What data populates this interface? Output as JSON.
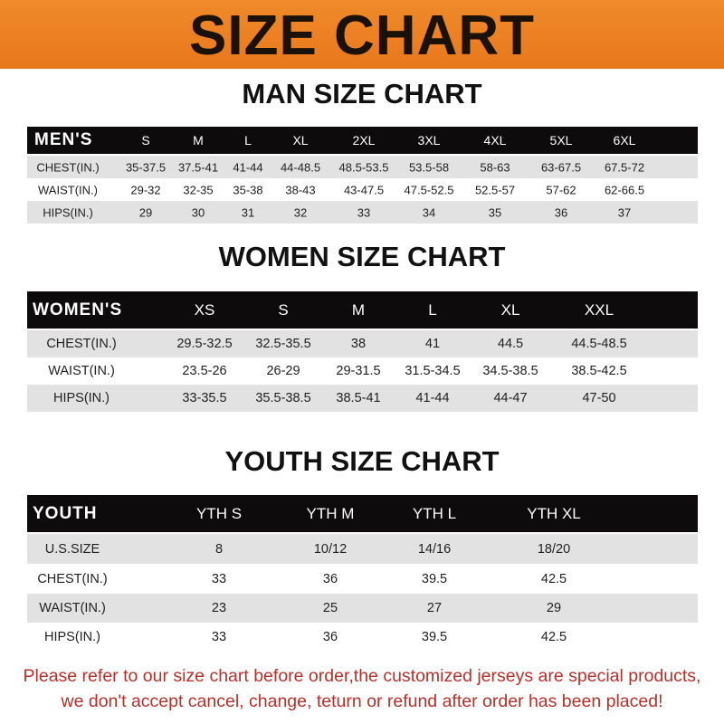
{
  "banner_title": "SIZE CHART",
  "men": {
    "title": "MAN SIZE CHART",
    "header": [
      "MEN'S",
      "S",
      "M",
      "L",
      "XL",
      "2XL",
      "3XL",
      "4XL",
      "5XL",
      "6XL"
    ],
    "rows": [
      [
        "CHEST(IN.)",
        "35-37.5",
        "37.5-41",
        "41-44",
        "44-48.5",
        "48.5-53.5",
        "53.5-58",
        "58-63",
        "63-67.5",
        "67.5-72"
      ],
      [
        "WAIST(IN.)",
        "29-32",
        "32-35",
        "35-38",
        "38-43",
        "43-47.5",
        "47.5-52.5",
        "52.5-57",
        "57-62",
        "62-66.5"
      ],
      [
        "HIPS(IN.)",
        "29",
        "30",
        "31",
        "32",
        "33",
        "34",
        "35",
        "36",
        "37"
      ]
    ]
  },
  "women": {
    "title": "WOMEN SIZE CHART",
    "header": [
      "WOMEN'S",
      "XS",
      "S",
      "M",
      "L",
      "XL",
      "XXL"
    ],
    "rows": [
      [
        "CHEST(IN.)",
        "29.5-32.5",
        "32.5-35.5",
        "38",
        "41",
        "44.5",
        "44.5-48.5"
      ],
      [
        "WAIST(IN.)",
        "23.5-26",
        "26-29",
        "29-31.5",
        "31.5-34.5",
        "34.5-38.5",
        "38.5-42.5"
      ],
      [
        "HIPS(IN.)",
        "33-35.5",
        "35.5-38.5",
        "38.5-41",
        "41-44",
        "44-47",
        "47-50"
      ]
    ]
  },
  "youth": {
    "title": "YOUTH SIZE CHART",
    "header": [
      "YOUTH",
      "YTH S",
      "YTH M",
      "YTH L",
      "YTH XL"
    ],
    "rows": [
      [
        "U.S.SIZE",
        "8",
        "10/12",
        "14/16",
        "18/20"
      ],
      [
        "CHEST(IN.)",
        "33",
        "36",
        "39.5",
        "42.5"
      ],
      [
        "WAIST(IN.)",
        "23",
        "25",
        "27",
        "29"
      ],
      [
        "HIPS(IN.)",
        "33",
        "36",
        "39.5",
        "42.5"
      ]
    ]
  },
  "footer": {
    "line1": "Please refer to our size chart before order,the customized jerseys are special products,",
    "line2": "we don't accept cancel, change, teturn or refund after order has been placed!"
  },
  "colors": {
    "banner": "#ee8424",
    "header_row": "#0d0b0b",
    "stripe": "#e2e2e2",
    "footer_text": "#b8302a"
  }
}
